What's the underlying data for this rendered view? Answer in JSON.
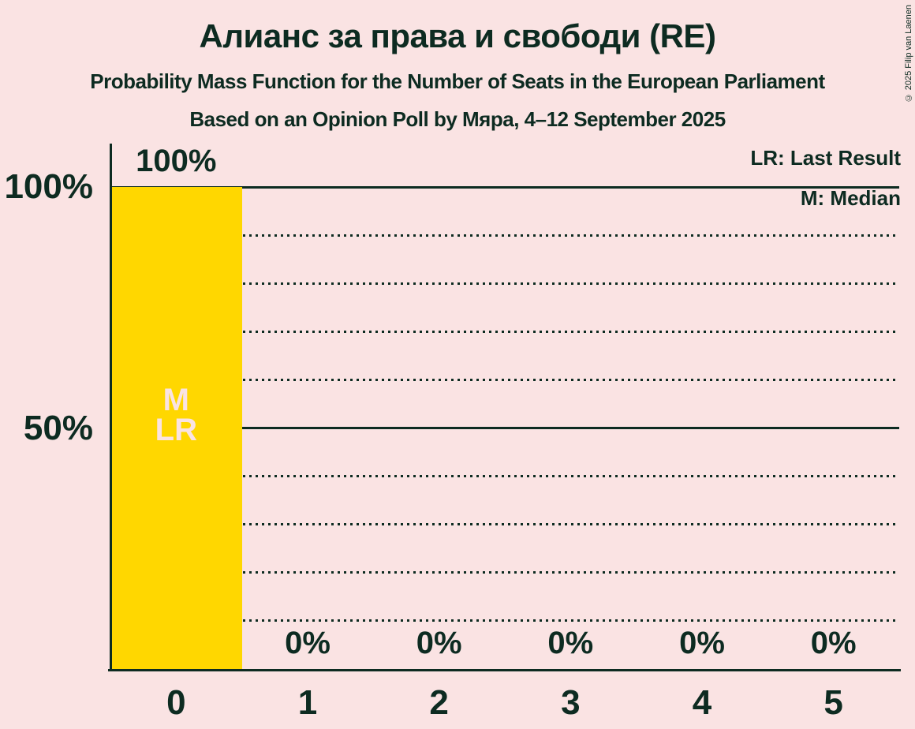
{
  "header": {
    "title": "Алианс за права и свободи (RE)",
    "subtitle": "Probability Mass Function for the Number of Seats in the European Parliament",
    "poll_line": "Based on an Opinion Poll by Мяра, 4–12 September 2025"
  },
  "copyright": "© 2025 Filip van Laenen",
  "legend": {
    "last_result_label": "LR: Last Result",
    "median_label": "M: Median"
  },
  "y_axis": {
    "labels": [
      "100%",
      "50%"
    ]
  },
  "colors": {
    "background": "#fae3e3",
    "bar": "#ffd700",
    "text": "#0d2b21",
    "bar_text": "#fae3e3"
  },
  "chart_data": {
    "type": "bar",
    "title": "Алианс за права и свободи (RE)",
    "categories": [
      "0",
      "1",
      "2",
      "3",
      "4",
      "5"
    ],
    "values": [
      100,
      0,
      0,
      0,
      0,
      0
    ],
    "value_labels": [
      "100%",
      "0%",
      "0%",
      "0%",
      "0%",
      "0%"
    ],
    "xlabel": "",
    "ylabel": "",
    "ylim": [
      0,
      109
    ],
    "y_gridlines": {
      "solid": [
        100,
        50
      ],
      "dotted": [
        90,
        80,
        70,
        60,
        40,
        30,
        20,
        10
      ]
    },
    "annotations": [
      {
        "category": "0",
        "labels": [
          "M",
          "LR"
        ]
      }
    ],
    "legend_position": "top-right",
    "grid": true
  }
}
